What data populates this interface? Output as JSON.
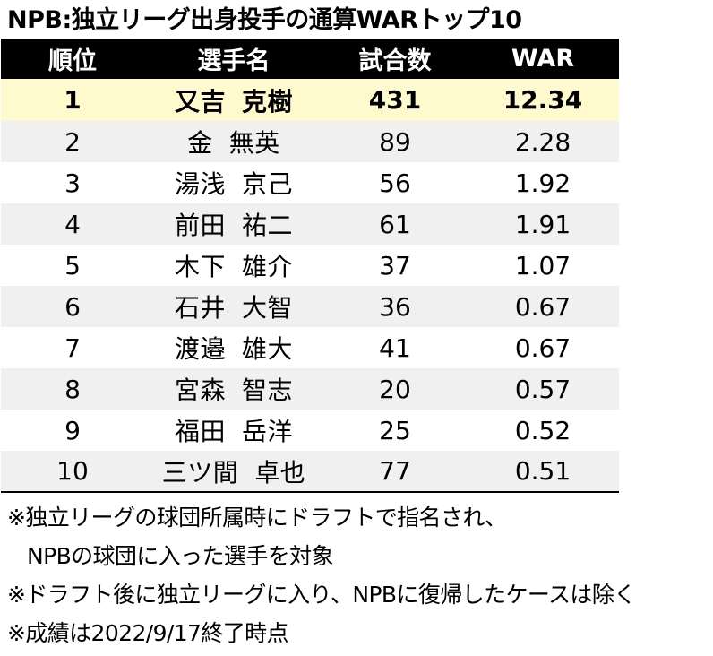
{
  "chart_data": {
    "type": "table",
    "title": "NPB:独立リーグ出身投手の通算WARトップ10",
    "columns": [
      "順位",
      "選手名",
      "試合数",
      "WAR"
    ],
    "rows": [
      {
        "rank": "1",
        "surname": "又吉",
        "given": "克樹",
        "games": 431,
        "war": "12.34"
      },
      {
        "rank": "2",
        "surname": "金",
        "given": "無英",
        "games": 89,
        "war": "2.28"
      },
      {
        "rank": "3",
        "surname": "湯浅",
        "given": "京己",
        "games": 56,
        "war": "1.92"
      },
      {
        "rank": "4",
        "surname": "前田",
        "given": "祐二",
        "games": 61,
        "war": "1.91"
      },
      {
        "rank": "5",
        "surname": "木下",
        "given": "雄介",
        "games": 37,
        "war": "1.07"
      },
      {
        "rank": "6",
        "surname": "石井",
        "given": "大智",
        "games": 36,
        "war": "0.67"
      },
      {
        "rank": "7",
        "surname": "渡邉",
        "given": "雄大",
        "games": 41,
        "war": "0.67"
      },
      {
        "rank": "8",
        "surname": "宮森",
        "given": "智志",
        "games": 20,
        "war": "0.57"
      },
      {
        "rank": "9",
        "surname": "福田",
        "given": "岳洋",
        "games": 25,
        "war": "0.52"
      },
      {
        "rank": "10",
        "surname": "三ツ間",
        "given": "卓也",
        "games": 77,
        "war": "0.51"
      }
    ],
    "notes": [
      "※独立リーグの球団所属時にドラフトで指名され、",
      "NPBの球団に入った選手を対象",
      "※ドラフト後に独立リーグに入り、NPBに復帰したケースは除く",
      "※成績は2022/9/17終了時点"
    ]
  },
  "colors": {
    "header_bg": "#000000",
    "header_text": "#ffffff",
    "highlight_row": "#fffacd",
    "alt_row": "#f0f0f0"
  }
}
